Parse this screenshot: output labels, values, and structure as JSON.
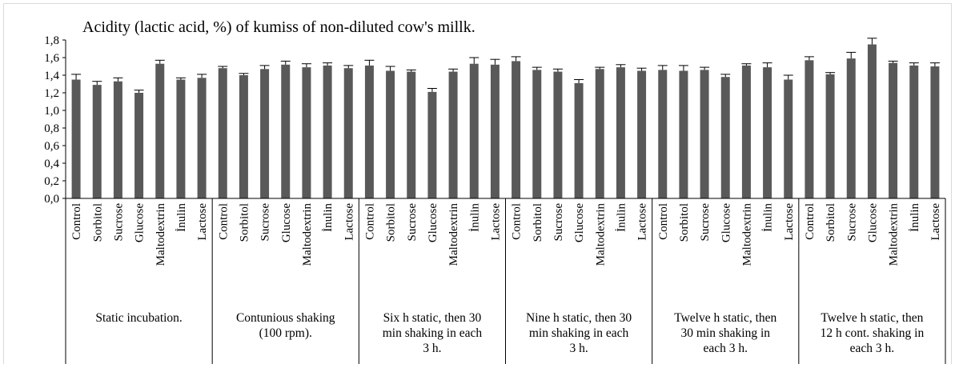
{
  "chart_data": {
    "type": "bar",
    "title": "Acidity (lactic acid, %) of  kumiss  of non-diluted cow's millk.",
    "xlabel": "",
    "ylabel": "",
    "ylim": [
      0,
      1.8
    ],
    "ytick_step": 0.2,
    "ytick_labels": [
      "0,0",
      "0,2",
      "0,4",
      "0,6",
      "0,8",
      "1,0",
      "1,2",
      "1,4",
      "1,6",
      "1,8"
    ],
    "grid": false,
    "legend": "none",
    "bar_color": "#595959",
    "error_color": "#000000",
    "groups": [
      {
        "label": "Static incubation.",
        "label_lines": [
          "Static incubation."
        ],
        "categories": [
          "Control",
          "Sorbitol",
          "Sucrose",
          "Glucose",
          "Maltodextrin",
          "İnulin",
          "Lactose"
        ],
        "values": [
          1.35,
          1.29,
          1.33,
          1.2,
          1.53,
          1.35,
          1.37
        ],
        "errors": [
          0.06,
          0.04,
          0.04,
          0.03,
          0.04,
          0.02,
          0.04
        ]
      },
      {
        "label": "Contunious shaking (100 rpm).",
        "label_lines": [
          "Contunious shaking",
          "(100 rpm)."
        ],
        "categories": [
          "Control",
          "Sorbitol",
          "Sucrose",
          "Glucose",
          "Maltodextrin",
          "İnulin",
          "Lactose"
        ],
        "values": [
          1.48,
          1.4,
          1.47,
          1.52,
          1.49,
          1.51,
          1.48
        ],
        "errors": [
          0.02,
          0.02,
          0.04,
          0.04,
          0.04,
          0.03,
          0.03
        ]
      },
      {
        "label": "Six h static, then 30 min shaking in each 3 h.",
        "label_lines": [
          "Six h static, then 30",
          "min shaking in each",
          "3 h."
        ],
        "categories": [
          "Control",
          "Sorbitol",
          "Sucrose",
          "Glucose",
          "Maltodextrin",
          "İnulin",
          "Lactose"
        ],
        "values": [
          1.51,
          1.45,
          1.44,
          1.21,
          1.44,
          1.53,
          1.52
        ],
        "errors": [
          0.06,
          0.05,
          0.02,
          0.04,
          0.03,
          0.07,
          0.06
        ]
      },
      {
        "label": "Nine h static, then 30 min shaking in each 3 h.",
        "label_lines": [
          "Nine h static, then 30",
          "min shaking in each",
          "3 h."
        ],
        "categories": [
          "Control",
          "Sorbitol",
          "Sucrose",
          "Glucose",
          "Maltodextrin",
          "İnulin",
          "Lactose"
        ],
        "values": [
          1.56,
          1.46,
          1.44,
          1.31,
          1.47,
          1.49,
          1.45
        ],
        "errors": [
          0.05,
          0.03,
          0.03,
          0.04,
          0.02,
          0.03,
          0.03
        ]
      },
      {
        "label": "Twelve h static, then 30 min shaking in each 3 h.",
        "label_lines": [
          "Twelve h static, then",
          "30 min shaking in",
          "each 3 h."
        ],
        "categories": [
          "Control",
          "Sorbitol",
          "Sucrose",
          "Glucose",
          "Maltodextrin",
          "İnulin",
          "Lactose"
        ],
        "values": [
          1.46,
          1.45,
          1.46,
          1.38,
          1.51,
          1.49,
          1.35
        ],
        "errors": [
          0.05,
          0.06,
          0.03,
          0.03,
          0.02,
          0.05,
          0.05
        ]
      },
      {
        "label": "Twelve h static, then 12 h cont. shaking in each 3 h.",
        "label_lines": [
          "Twelve h static, then",
          "12 h cont. shaking in",
          "each 3 h."
        ],
        "categories": [
          "Control",
          "Sorbitol",
          "Sucrose",
          "Glucose",
          "Maltodextrin",
          "İnulin",
          "Lactose"
        ],
        "values": [
          1.57,
          1.41,
          1.59,
          1.75,
          1.54,
          1.51,
          1.5
        ],
        "errors": [
          0.04,
          0.02,
          0.07,
          0.07,
          0.02,
          0.03,
          0.04
        ]
      }
    ]
  }
}
